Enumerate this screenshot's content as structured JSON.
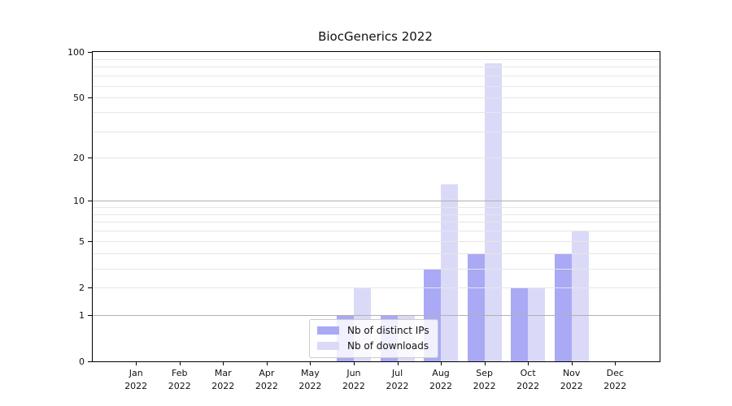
{
  "title": "BiocGenerics 2022",
  "chart_data": {
    "type": "bar",
    "title": "BiocGenerics 2022",
    "categories": [
      "Jan",
      "Feb",
      "Mar",
      "Apr",
      "May",
      "Jun",
      "Jul",
      "Aug",
      "Sep",
      "Oct",
      "Nov",
      "Dec"
    ],
    "x_year_label": "2022",
    "series": [
      {
        "name": "Nb of distinct IPs",
        "color": "#a9a9f6",
        "values": [
          0,
          0,
          0,
          0,
          0,
          1,
          1,
          3,
          4,
          2,
          4,
          0
        ]
      },
      {
        "name": "Nb of downloads",
        "color": "#dadaf8",
        "values": [
          0,
          0,
          0,
          0,
          0,
          2,
          1,
          13,
          84,
          2,
          6,
          0
        ]
      }
    ],
    "y_axis": {
      "scale": "log10(value+1)",
      "tick_labels": [
        100,
        50,
        20,
        10,
        5,
        2,
        1,
        0
      ],
      "minor_gridlines": [
        2,
        3,
        4,
        5,
        6,
        7,
        8,
        9,
        20,
        30,
        40,
        50,
        60,
        70,
        80,
        90
      ],
      "major_gridlines": [
        1,
        10
      ],
      "range": [
        0,
        100
      ]
    },
    "legend": {
      "entries": [
        "Nb of distinct IPs",
        "Nb of downloads"
      ],
      "position": "lower center"
    },
    "grid": true
  },
  "colors": {
    "background": "#ffffff",
    "axis": "#000000",
    "grid_minor": "#e6e6e6",
    "grid_major": "#b0b0b0",
    "text": "#111111"
  }
}
